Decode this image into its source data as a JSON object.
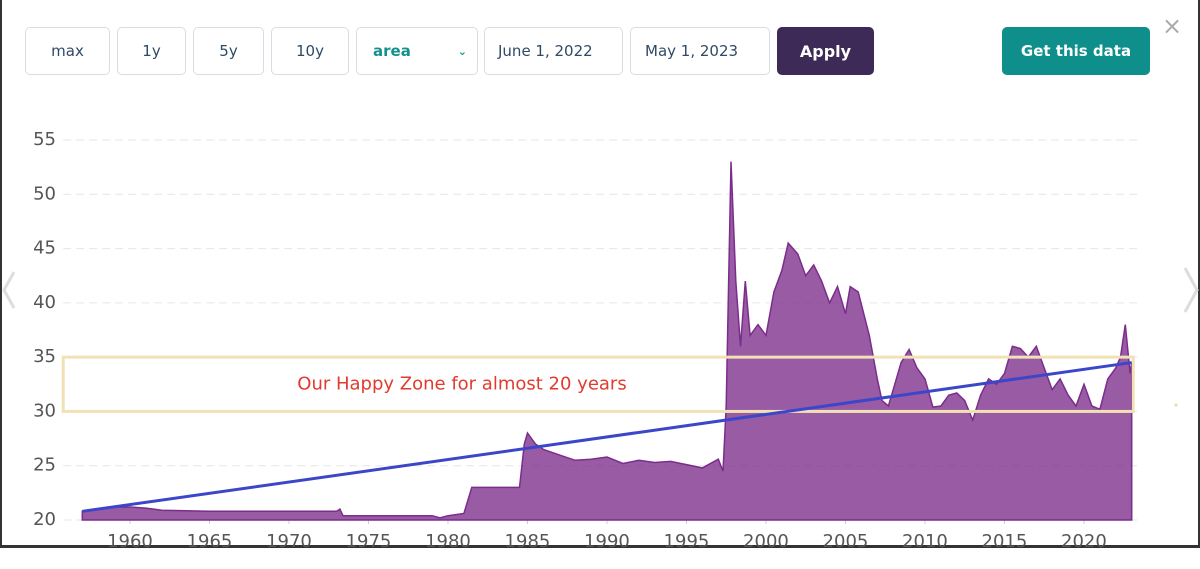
{
  "controls": {
    "buttons": [
      "max",
      "1y",
      "5y",
      "10y"
    ],
    "start_date": "June 1, 2022",
    "end_date": "May 1, 2023",
    "apply": "Apply",
    "get_data": "Get this data",
    "close": "×"
  },
  "chart_data": {
    "type": "area",
    "color": "#7b2d8b",
    "x": [
      1957,
      1958,
      1959,
      1960,
      1961,
      1962,
      1965,
      1970,
      1973,
      1973.2,
      1973.4,
      1975,
      1979,
      1979.5,
      1980,
      1981,
      1981.5,
      1984.5,
      1984.8,
      1985,
      1985.5,
      1986,
      1987,
      1988,
      1989,
      1990,
      1991,
      1992,
      1993,
      1994,
      1995,
      1996,
      1997,
      1997.3,
      1997.5,
      1997.8,
      1998.1,
      1998.4,
      1998.7,
      1999,
      1999.5,
      2000,
      2000.5,
      2001,
      2001.4,
      2002,
      2002.5,
      2003,
      2003.5,
      2004,
      2004.5,
      2005,
      2005.3,
      2005.8,
      2006.5,
      2007,
      2007.3,
      2007.7,
      2008,
      2008.5,
      2009,
      2009.5,
      2010,
      2010.5,
      2011,
      2011.5,
      2012,
      2012.5,
      2013,
      2013.5,
      2014,
      2014.5,
      2015,
      2015.5,
      2016,
      2016.5,
      2017,
      2017.5,
      2018,
      2018.5,
      2019,
      2019.5,
      2020,
      2020.5,
      2021,
      2021.5,
      2022,
      2022.3,
      2022.6,
      2022.9,
      2023
    ],
    "values": [
      20.8,
      21.0,
      21.2,
      21.2,
      21.1,
      20.9,
      20.8,
      20.8,
      20.8,
      21.0,
      20.4,
      20.4,
      20.4,
      20.2,
      20.4,
      20.6,
      23.0,
      23.0,
      27.0,
      28.0,
      27.0,
      26.5,
      26.0,
      25.5,
      25.6,
      25.8,
      25.2,
      25.5,
      25.3,
      25.4,
      25.1,
      24.8,
      25.6,
      24.5,
      30.5,
      53,
      42,
      36,
      42,
      37,
      38,
      37,
      41,
      43,
      45.5,
      44.5,
      42.5,
      43.5,
      42,
      40,
      41.5,
      39,
      41.5,
      41,
      37,
      33,
      31,
      30.5,
      32,
      34.5,
      35.7,
      34,
      33,
      30.4,
      30.5,
      31.5,
      31.7,
      31,
      29.2,
      31.5,
      33,
      32.5,
      33.5,
      36,
      35.8,
      35,
      36,
      34,
      32,
      33,
      31.5,
      30.5,
      32.5,
      30.5,
      30.2,
      33,
      34,
      35,
      38,
      33.5,
      34.5
    ],
    "xlim": [
      1955.8,
      2023.5
    ],
    "ylim": [
      20,
      55
    ],
    "xticks": [
      1960,
      1965,
      1970,
      1975,
      1980,
      1985,
      1990,
      1995,
      2000,
      2005,
      2010,
      2015,
      2020
    ],
    "yticks": [
      20,
      25,
      30,
      35,
      40,
      45,
      50,
      55
    ],
    "grid": true,
    "happy_zone": {
      "text": "Our Happy Zone for almost 20 years",
      "x": [
        1955.8,
        2023.1
      ],
      "y": [
        30,
        35
      ],
      "color": "#f0e2b4"
    },
    "trend_line": {
      "x": [
        1957,
        2023
      ],
      "y": [
        20.8,
        34.5
      ],
      "color": "#3b46c8"
    }
  }
}
